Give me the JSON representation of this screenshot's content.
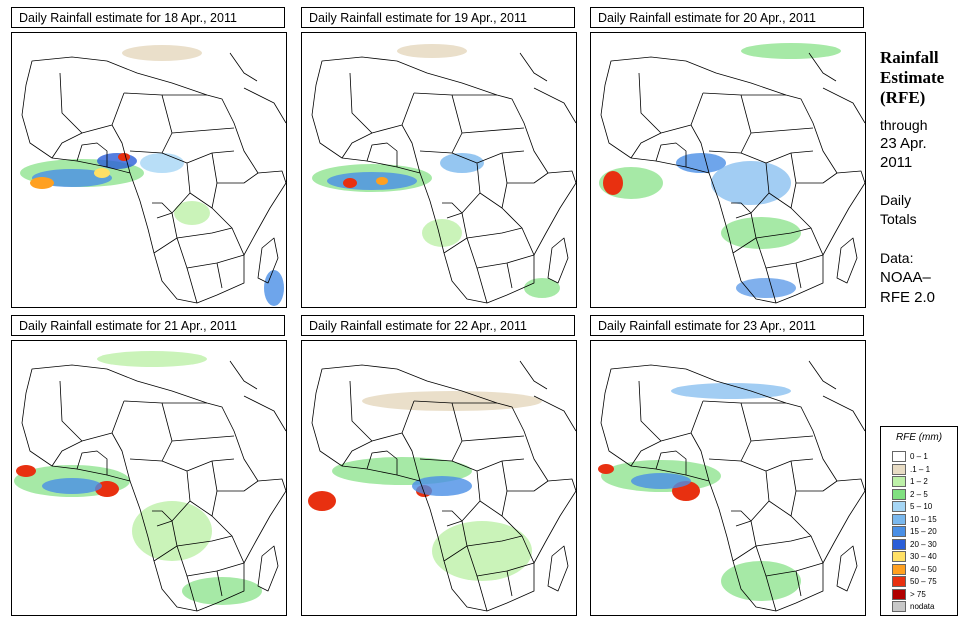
{
  "panels": [
    {
      "title": "Daily Rainfall estimate for  18 Apr., 2011"
    },
    {
      "title": "Daily Rainfall estimate for  19 Apr., 2011"
    },
    {
      "title": "Daily Rainfall estimate for  20 Apr., 2011"
    },
    {
      "title": "Daily Rainfall estimate for  21 Apr., 2011"
    },
    {
      "title": "Daily Rainfall estimate for  22 Apr., 2011"
    },
    {
      "title": "Daily Rainfall estimate for  23 Apr., 2011"
    }
  ],
  "sidebar": {
    "title_line1": "Rainfall",
    "title_line2": "Estimate",
    "title_line3": "(RFE)",
    "through_label": "through",
    "through_date_line1": "23 Apr.",
    "through_date_line2": "2011",
    "period_line1": "Daily",
    "period_line2": "Totals",
    "data_label": "Data:",
    "data_source_line1": "NOAA–",
    "data_source_line2": "RFE 2.0"
  },
  "legend": {
    "title": "RFE (mm)",
    "items": [
      {
        "label": "0 – 1",
        "color": "#ffffff"
      },
      {
        "label": ".1 – 1",
        "color": "#e8dcc4"
      },
      {
        "label": "1 – 2",
        "color": "#bdf0a8"
      },
      {
        "label": "2 – 5",
        "color": "#80e080"
      },
      {
        "label": "5 – 10",
        "color": "#a6d6f5"
      },
      {
        "label": "10 – 15",
        "color": "#7ab8ee"
      },
      {
        "label": "15 – 20",
        "color": "#4a8fe6"
      },
      {
        "label": "20 – 30",
        "color": "#2a5ed8"
      },
      {
        "label": "30 – 40",
        "color": "#ffe066"
      },
      {
        "label": "40 – 50",
        "color": "#ffa020"
      },
      {
        "label": "50 – 75",
        "color": "#e83010"
      },
      {
        "label": "> 75",
        "color": "#b00000"
      },
      {
        "label": "nodata",
        "color": "#c8c8c8"
      }
    ]
  }
}
